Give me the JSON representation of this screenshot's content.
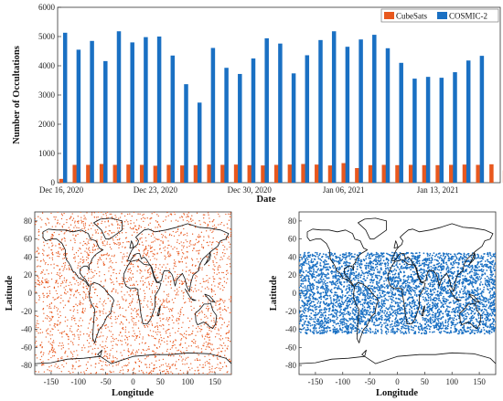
{
  "chart_data": [
    {
      "type": "bar",
      "xlabel": "Date",
      "ylabel": "Number of Occultations",
      "ylim": [
        0,
        6000
      ],
      "yticks": [
        "0",
        "1000",
        "2000",
        "3000",
        "4000",
        "5000",
        "6000"
      ],
      "xtick_labels": [
        "Dec 16, 2020",
        "Dec 23, 2020",
        "Dec 30, 2020",
        "Jan 06, 2021",
        "Jan 13, 2021"
      ],
      "xtick_day_index": [
        0,
        7,
        14,
        21,
        28
      ],
      "legend_position": "top-right",
      "series": [
        {
          "name": "CubeSats",
          "color": "#e8581e",
          "values": [
            130,
            610,
            610,
            640,
            610,
            620,
            610,
            580,
            610,
            590,
            600,
            620,
            610,
            620,
            600,
            590,
            610,
            620,
            640,
            620,
            590,
            670,
            500,
            600,
            610,
            600,
            610,
            600,
            600,
            610,
            620,
            610,
            630,
            420
          ]
        },
        {
          "name": "COSMIC-2",
          "color": "#1a70c3",
          "values": [
            5130,
            4550,
            4850,
            4160,
            5180,
            4800,
            4980,
            5000,
            4350,
            3370,
            2740,
            4610,
            3930,
            3720,
            4250,
            4940,
            4760,
            3740,
            4360,
            4880,
            5180,
            4650,
            4900,
            5060,
            4600,
            4100,
            3560,
            3620,
            3590,
            3780,
            4180,
            4340
          ]
        }
      ]
    },
    {
      "type": "scatter",
      "xlabel": "Longitude",
      "ylabel": "Latitude",
      "xlim": [
        -180,
        180
      ],
      "ylim": [
        -90,
        90
      ],
      "xticks": [
        "-150",
        "-100",
        "-50",
        "0",
        "50",
        "100",
        "150"
      ],
      "yticks": [
        "80",
        "60",
        "40",
        "20",
        "0",
        "-20",
        "-40",
        "-60",
        "-80"
      ],
      "point_color": "#e8581e",
      "latitude_coverage": [
        -90,
        90
      ]
    },
    {
      "type": "scatter",
      "xlabel": "Longitude",
      "ylabel": "Latitude",
      "xlim": [
        -180,
        180
      ],
      "ylim": [
        -90,
        90
      ],
      "xticks": [
        "-150",
        "-100",
        "-50",
        "0",
        "50",
        "100",
        "150"
      ],
      "yticks": [
        "80",
        "60",
        "40",
        "20",
        "0",
        "-20",
        "-40",
        "-60",
        "-80"
      ],
      "point_color": "#1a70c3",
      "latitude_coverage": [
        -45,
        45
      ]
    }
  ]
}
